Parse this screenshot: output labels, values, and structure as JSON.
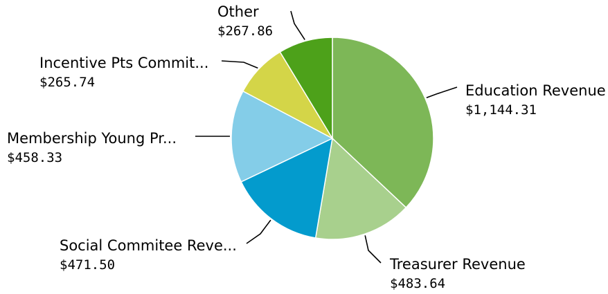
{
  "chart_data": {
    "type": "pie",
    "title": "",
    "slices": [
      {
        "label": "Education Revenue",
        "value": 1144.31,
        "display": "$1,144.31",
        "color": "#7db757"
      },
      {
        "label": "Treasurer Revenue",
        "value": 483.64,
        "display": "$483.64",
        "color": "#a8d08d"
      },
      {
        "label": "Social Commitee Reve...",
        "value": 471.5,
        "display": "$471.50",
        "color": "#039bcd"
      },
      {
        "label": "Membership Young Pr...",
        "value": 458.33,
        "display": "$458.33",
        "color": "#84cde8"
      },
      {
        "label": "Incentive Pts Commit...",
        "value": 265.74,
        "display": "$265.74",
        "color": "#d4d548"
      },
      {
        "label": "Other",
        "value": 267.86,
        "display": "$267.86",
        "color": "#4da11a"
      }
    ]
  }
}
